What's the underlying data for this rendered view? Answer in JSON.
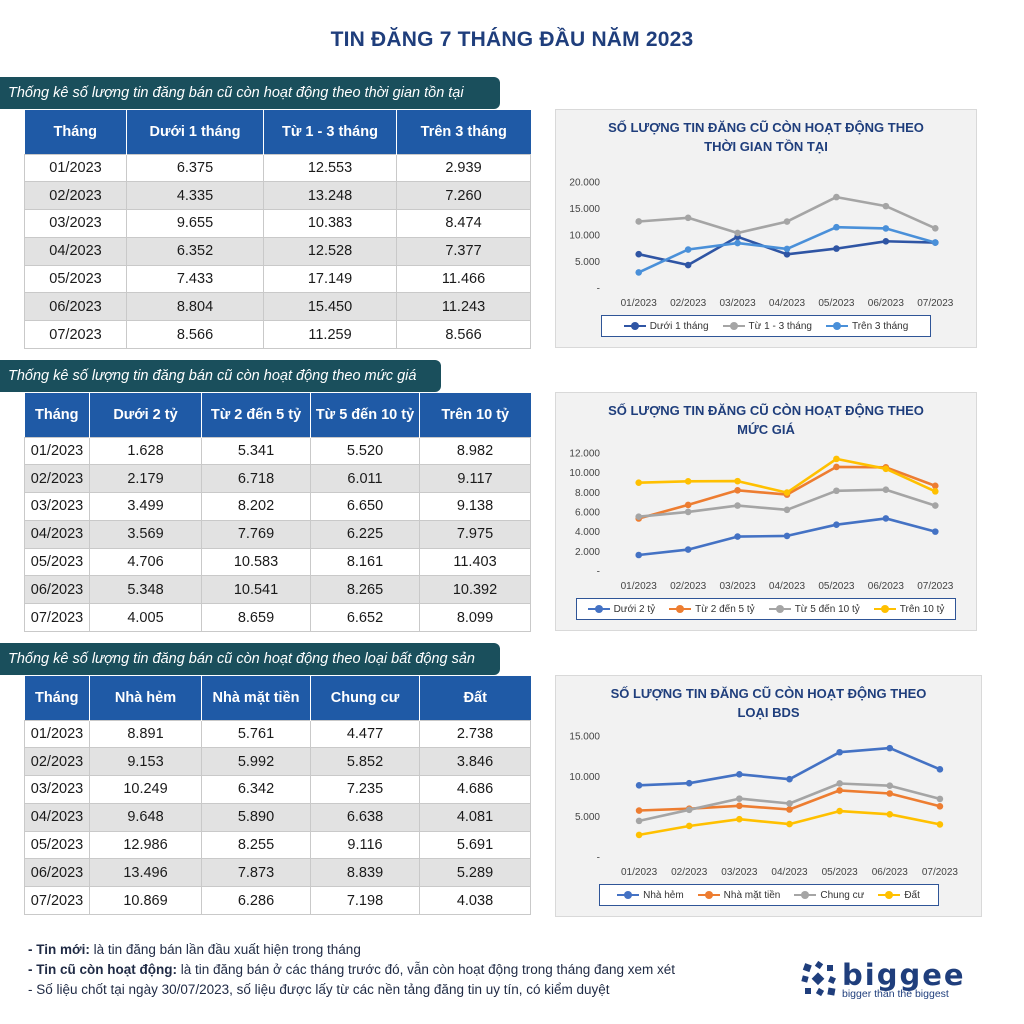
{
  "title": "TIN ĐĂNG 7 THÁNG ĐẦU NĂM 2023",
  "sections": [
    {
      "banner": "Thống kê số lượng tin đăng bán cũ còn hoạt động theo thời gian tồn tại",
      "headers": [
        "Tháng",
        "Dưới 1 tháng",
        "Từ 1 - 3 tháng",
        "Trên 3 tháng"
      ],
      "rows": [
        [
          "01/2023",
          "6.375",
          "12.553",
          "2.939"
        ],
        [
          "02/2023",
          "4.335",
          "13.248",
          "7.260"
        ],
        [
          "03/2023",
          "9.655",
          "10.383",
          "8.474"
        ],
        [
          "04/2023",
          "6.352",
          "12.528",
          "7.377"
        ],
        [
          "05/2023",
          "7.433",
          "17.149",
          "11.466"
        ],
        [
          "06/2023",
          "8.804",
          "15.450",
          "11.243"
        ],
        [
          "07/2023",
          "8.566",
          "11.259",
          "8.566"
        ]
      ]
    },
    {
      "banner": "Thống kê số lượng tin đăng bán cũ còn hoạt động theo mức giá",
      "headers": [
        "Tháng",
        "Dưới 2 tỷ",
        "Từ 2 đến 5 tỷ",
        "Từ 5 đến 10 tỷ",
        "Trên 10 tỷ"
      ],
      "rows": [
        [
          "01/2023",
          "1.628",
          "5.341",
          "5.520",
          "8.982"
        ],
        [
          "02/2023",
          "2.179",
          "6.718",
          "6.011",
          "9.117"
        ],
        [
          "03/2023",
          "3.499",
          "8.202",
          "6.650",
          "9.138"
        ],
        [
          "04/2023",
          "3.569",
          "7.769",
          "6.225",
          "7.975"
        ],
        [
          "05/2023",
          "4.706",
          "10.583",
          "8.161",
          "11.403"
        ],
        [
          "06/2023",
          "5.348",
          "10.541",
          "8.265",
          "10.392"
        ],
        [
          "07/2023",
          "4.005",
          "8.659",
          "6.652",
          "8.099"
        ]
      ]
    },
    {
      "banner": "Thống kê số lượng tin đăng bán cũ còn hoạt động theo loại bất động sản",
      "headers": [
        "Tháng",
        "Nhà hẻm",
        "Nhà mặt tiền",
        "Chung cư",
        "Đất"
      ],
      "rows": [
        [
          "01/2023",
          "8.891",
          "5.761",
          "4.477",
          "2.738"
        ],
        [
          "02/2023",
          "9.153",
          "5.992",
          "5.852",
          "3.846"
        ],
        [
          "03/2023",
          "10.249",
          "6.342",
          "7.235",
          "4.686"
        ],
        [
          "04/2023",
          "9.648",
          "5.890",
          "6.638",
          "4.081"
        ],
        [
          "05/2023",
          "12.986",
          "8.255",
          "9.116",
          "5.691"
        ],
        [
          "06/2023",
          "13.496",
          "7.873",
          "8.839",
          "5.289"
        ],
        [
          "07/2023",
          "10.869",
          "6.286",
          "7.198",
          "4.038"
        ]
      ]
    }
  ],
  "chart_data": [
    {
      "type": "line",
      "title": "SỐ LƯỢNG TIN ĐĂNG CŨ CÒN HOẠT ĐỘNG THEO THỜI GIAN TỒN TẠI",
      "title_lines": [
        "SỐ LƯỢNG TIN ĐĂNG CŨ CÒN HOẠT ĐỘNG THEO",
        "THỜI GIAN TỒN TẠI"
      ],
      "categories": [
        "01/2023",
        "02/2023",
        "03/2023",
        "04/2023",
        "05/2023",
        "06/2023",
        "07/2023"
      ],
      "ylim": [
        0,
        20000
      ],
      "yticks": [
        0,
        5000,
        10000,
        15000,
        20000
      ],
      "ytick_labels": [
        "-",
        "5.000",
        "10.000",
        "15.000",
        "20.000"
      ],
      "legend": "bottom",
      "series": [
        {
          "name": "Dưới 1 tháng",
          "color": "#2f55a4",
          "values": [
            6375,
            4335,
            9655,
            6352,
            7433,
            8804,
            8566
          ]
        },
        {
          "name": "Từ 1 - 3 tháng",
          "color": "#a5a5a5",
          "values": [
            12553,
            13248,
            10383,
            12528,
            17149,
            15450,
            11259
          ]
        },
        {
          "name": "Trên 3 tháng",
          "color": "#4a90d9",
          "values": [
            2939,
            7260,
            8474,
            7377,
            11466,
            11243,
            8566
          ]
        }
      ]
    },
    {
      "type": "line",
      "title": "SỐ LƯỢNG TIN ĐĂNG CŨ CÒN HOẠT ĐỘNG THEO MỨC GIÁ",
      "title_lines": [
        "SỐ LƯỢNG TIN ĐĂNG CŨ CÒN HOẠT ĐỘNG THEO",
        "MỨC GIÁ"
      ],
      "categories": [
        "01/2023",
        "02/2023",
        "03/2023",
        "04/2023",
        "05/2023",
        "06/2023",
        "07/2023"
      ],
      "ylim": [
        0,
        12000
      ],
      "yticks": [
        0,
        2000,
        4000,
        6000,
        8000,
        10000,
        12000
      ],
      "ytick_labels": [
        "-",
        "2.000",
        "4.000",
        "6.000",
        "8.000",
        "10.000",
        "12.000"
      ],
      "legend": "bottom",
      "series": [
        {
          "name": "Dưới 2 tỷ",
          "color": "#4472c4",
          "values": [
            1628,
            2179,
            3499,
            3569,
            4706,
            5348,
            4005
          ]
        },
        {
          "name": "Từ 2 đến 5 tỷ",
          "color": "#ed7d31",
          "values": [
            5341,
            6718,
            8202,
            7769,
            10583,
            10541,
            8659
          ]
        },
        {
          "name": "Từ 5 đến 10 tỷ",
          "color": "#a5a5a5",
          "values": [
            5520,
            6011,
            6650,
            6225,
            8161,
            8265,
            6652
          ]
        },
        {
          "name": "Trên 10 tỷ",
          "color": "#ffc000",
          "values": [
            8982,
            9117,
            9138,
            7975,
            11403,
            10392,
            8099
          ]
        }
      ]
    },
    {
      "type": "line",
      "title": "SỐ LƯỢNG TIN ĐĂNG CŨ CÒN HOẠT ĐỘNG THEO LOẠI BDS",
      "title_lines": [
        "SỐ LƯỢNG TIN ĐĂNG CŨ CÒN HOẠT ĐỘNG THEO",
        "LOẠI BDS"
      ],
      "categories": [
        "01/2023",
        "02/2023",
        "03/2023",
        "04/2023",
        "05/2023",
        "06/2023",
        "07/2023"
      ],
      "ylim": [
        0,
        15000
      ],
      "yticks": [
        0,
        5000,
        10000,
        15000
      ],
      "ytick_labels": [
        "-",
        "5.000",
        "10.000",
        "15.000"
      ],
      "legend": "bottom",
      "series": [
        {
          "name": "Nhà hẻm",
          "color": "#4472c4",
          "values": [
            8891,
            9153,
            10249,
            9648,
            12986,
            13496,
            10869
          ]
        },
        {
          "name": "Nhà mặt tiền",
          "color": "#ed7d31",
          "values": [
            5761,
            5992,
            6342,
            5890,
            8255,
            7873,
            6286
          ]
        },
        {
          "name": "Chung cư",
          "color": "#a5a5a5",
          "values": [
            4477,
            5852,
            7235,
            6638,
            9116,
            8839,
            7198
          ]
        },
        {
          "name": "Đất",
          "color": "#ffc000",
          "values": [
            2738,
            3846,
            4686,
            4081,
            5691,
            5289,
            4038
          ]
        }
      ]
    }
  ],
  "notes": [
    {
      "term": "- Tin mới:",
      "text": " là tin đăng bán lần đầu xuất hiện trong tháng"
    },
    {
      "term": "- Tin cũ còn hoạt động:",
      "text": " là tin đăng bán ở các tháng trước đó, vẫn còn hoạt động trong tháng đang xem xét"
    },
    {
      "term": "",
      "text": "- Số liệu chốt tại ngày 30/07/2023, số liệu được lấy từ các nền tảng đăng tin uy tín, có kiểm duyệt"
    }
  ],
  "logo": {
    "word": "biggee",
    "tagline": "bigger than the biggest"
  }
}
